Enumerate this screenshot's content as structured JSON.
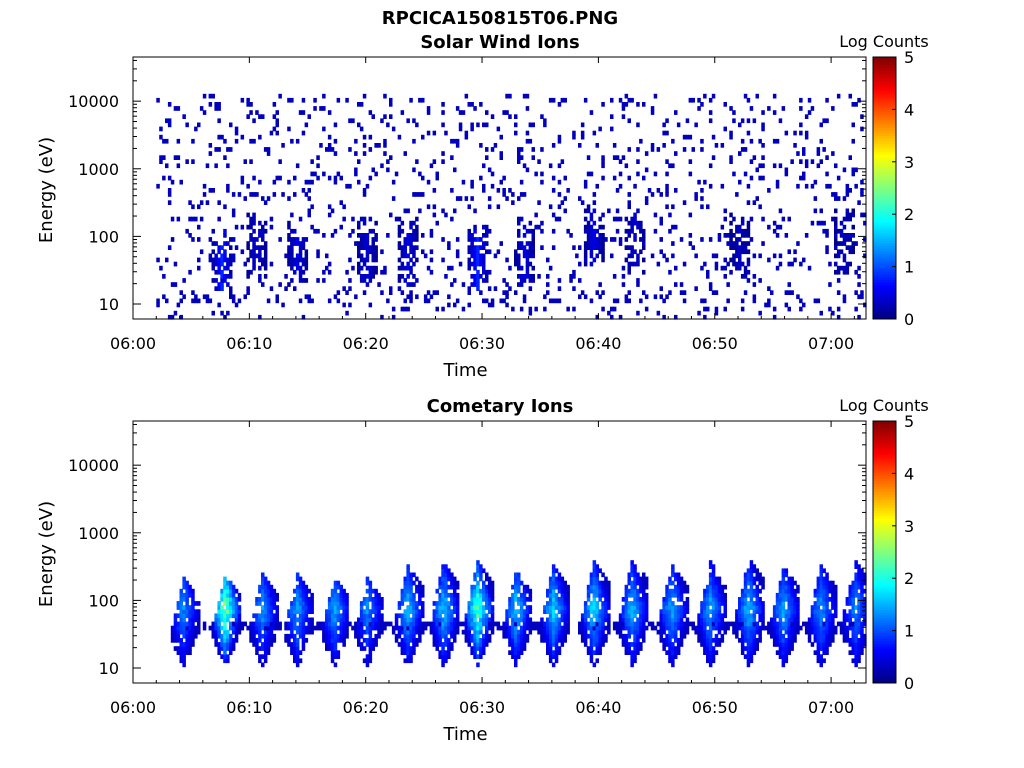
{
  "figure": {
    "title": "RPCICA150815T06.PNG"
  },
  "chart_data": [
    {
      "type": "heatmap",
      "title": "Solar Wind Ions",
      "xlabel": "Time",
      "ylabel": "Energy (eV)",
      "x_tick_labels": [
        "06:00",
        "06:10",
        "06:20",
        "06:30",
        "06:40",
        "06:50",
        "07:00"
      ],
      "x_ticks_minutes": [
        0,
        10,
        20,
        30,
        40,
        50,
        60
      ],
      "xlim_minutes": [
        0,
        63
      ],
      "y_scale": "log",
      "ylim": [
        6,
        45000
      ],
      "y_tick_labels": [
        "10",
        "100",
        "1000",
        "10000"
      ],
      "y_ticks": [
        10,
        100,
        1000,
        10000
      ],
      "colorbar": {
        "label": "Log Counts",
        "range": [
          0,
          5
        ],
        "tick_labels": [
          "0",
          "1",
          "2",
          "3",
          "4",
          "5"
        ],
        "colormap": "jet"
      },
      "pattern": {
        "description_values_only": true,
        "sparse_scatter_energy_range": [
          10,
          13000
        ],
        "background_level": 0.3,
        "bursts": [
          {
            "t": 7.5,
            "e": 40,
            "level": 0.8
          },
          {
            "t": 10.5,
            "e": 70,
            "level": 0.4
          },
          {
            "t": 14,
            "e": 60,
            "level": 0.5
          },
          {
            "t": 20,
            "e": 60,
            "level": 0.4
          },
          {
            "t": 23.5,
            "e": 60,
            "level": 0.5
          },
          {
            "t": 29.5,
            "e": 50,
            "level": 0.8
          },
          {
            "t": 33.5,
            "e": 60,
            "level": 0.5
          },
          {
            "t": 39.5,
            "e": 100,
            "level": 0.5
          },
          {
            "t": 43,
            "e": 90,
            "level": 0.4
          },
          {
            "t": 52,
            "e": 80,
            "level": 0.3
          },
          {
            "t": 61,
            "e": 90,
            "level": 0.3
          }
        ]
      }
    },
    {
      "type": "heatmap",
      "title": "Cometary Ions",
      "xlabel": "Time",
      "ylabel": "Energy (eV)",
      "x_tick_labels": [
        "06:00",
        "06:10",
        "06:20",
        "06:30",
        "06:40",
        "06:50",
        "07:00"
      ],
      "x_ticks_minutes": [
        0,
        10,
        20,
        30,
        40,
        50,
        60
      ],
      "xlim_minutes": [
        0,
        63
      ],
      "y_scale": "log",
      "ylim": [
        6,
        45000
      ],
      "y_tick_labels": [
        "10",
        "100",
        "1000",
        "10000"
      ],
      "y_ticks": [
        10,
        100,
        1000,
        10000
      ],
      "colorbar": {
        "label": "Log Counts",
        "range": [
          0,
          5
        ],
        "tick_labels": [
          "0",
          "1",
          "2",
          "3",
          "4",
          "5"
        ],
        "colormap": "jet"
      },
      "pattern": {
        "band_energy": 42,
        "bursts": [
          {
            "t": 4.2,
            "peak": 1.2,
            "emax": 220
          },
          {
            "t": 7.8,
            "peak": 2.6,
            "emax": 250
          },
          {
            "t": 11.0,
            "peak": 1.3,
            "emax": 260
          },
          {
            "t": 14.0,
            "peak": 1.3,
            "emax": 260
          },
          {
            "t": 17.2,
            "peak": 1.4,
            "emax": 240
          },
          {
            "t": 20.0,
            "peak": 1.2,
            "emax": 220
          },
          {
            "t": 23.5,
            "peak": 1.5,
            "emax": 350
          },
          {
            "t": 26.6,
            "peak": 1.6,
            "emax": 400
          },
          {
            "t": 29.5,
            "peak": 2.3,
            "emax": 380
          },
          {
            "t": 32.8,
            "peak": 1.6,
            "emax": 280
          },
          {
            "t": 36.0,
            "peak": 1.6,
            "emax": 330
          },
          {
            "t": 39.5,
            "peak": 1.7,
            "emax": 380
          },
          {
            "t": 42.8,
            "peak": 1.5,
            "emax": 420
          },
          {
            "t": 46.2,
            "peak": 1.4,
            "emax": 360
          },
          {
            "t": 49.5,
            "peak": 1.4,
            "emax": 370
          },
          {
            "t": 52.8,
            "peak": 1.5,
            "emax": 450
          },
          {
            "t": 55.8,
            "peak": 1.4,
            "emax": 340
          },
          {
            "t": 59.0,
            "peak": 1.3,
            "emax": 330
          },
          {
            "t": 62.0,
            "peak": 1.2,
            "emax": 420
          }
        ]
      }
    }
  ]
}
